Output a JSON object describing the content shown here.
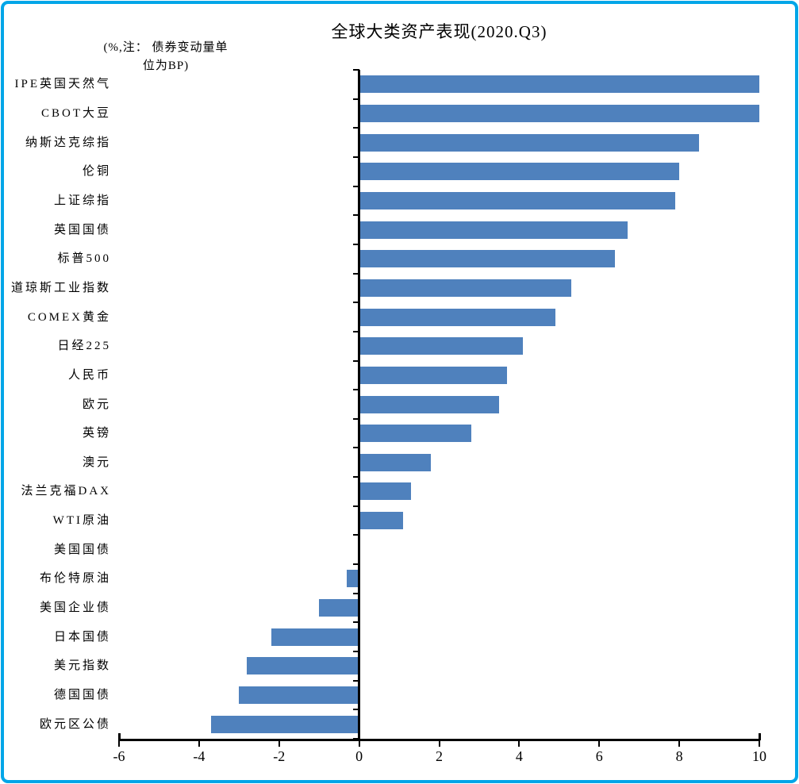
{
  "title": "全球大类资产表现(2020.Q3)",
  "note_lines": [
    "(%,注： 债券变动量单",
    "位为BP)"
  ],
  "colors": {
    "bar": "#4F81BD",
    "axis": "#000000",
    "frame": "#00A6E8",
    "background": "#FFFFFF"
  },
  "chart_data": {
    "type": "bar",
    "orientation": "horizontal",
    "title": "全球大类资产表现(2020.Q3)",
    "note": "(%,注： 债券变动量单位为BP)",
    "xlabel": "",
    "ylabel": "",
    "xlim": [
      -6,
      10
    ],
    "xticks": [
      -6,
      -4,
      -2,
      0,
      2,
      4,
      6,
      8,
      10
    ],
    "grid": false,
    "legend": false,
    "categories": [
      "IPE英国天然气",
      "CBOT大豆",
      "纳斯达克综指",
      "伦铜",
      "上证综指",
      "英国国债",
      "标普500",
      "道琼斯工业指数",
      "COMEX黄金",
      "日经225",
      "人民币",
      "欧元",
      "英镑",
      "澳元",
      "法兰克福DAX",
      "WTI原油",
      "美国国债",
      "布伦特原油",
      "美国企业债",
      "日本国债",
      "美元指数",
      "德国国债",
      "欧元区公债"
    ],
    "values": [
      10.0,
      10.0,
      8.5,
      8.0,
      7.9,
      6.7,
      6.4,
      5.3,
      4.9,
      4.1,
      3.7,
      3.5,
      2.8,
      1.8,
      1.3,
      1.1,
      0.0,
      -0.3,
      -1.0,
      -2.2,
      -2.8,
      -3.0,
      -3.7
    ]
  }
}
